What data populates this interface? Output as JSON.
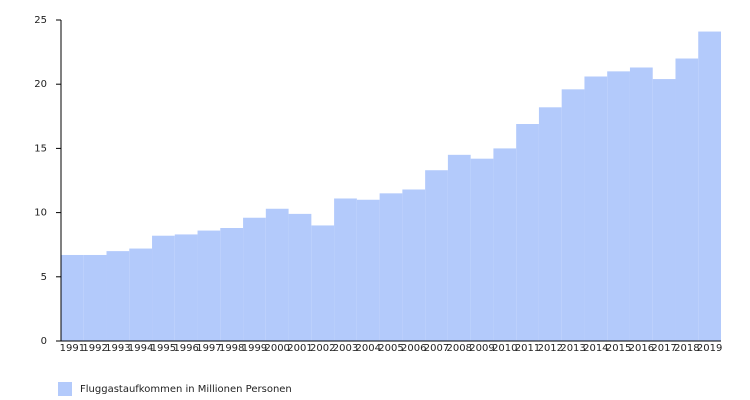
{
  "chart_data": {
    "type": "bar",
    "categories": [
      "1991",
      "1992",
      "1993",
      "1994",
      "1995",
      "1996",
      "1997",
      "1998",
      "1999",
      "2000",
      "2001",
      "2002",
      "2003",
      "2004",
      "2005",
      "2006",
      "2007",
      "2008",
      "2009",
      "2010",
      "2011",
      "2012",
      "2013",
      "2014",
      "2015",
      "2016",
      "2017",
      "2018",
      "2019"
    ],
    "series": [
      {
        "name": "Fluggastaufkommen in Millionen Personen",
        "color": "#b3cafb",
        "values": [
          6.7,
          6.7,
          7.0,
          7.2,
          8.2,
          8.3,
          8.6,
          8.8,
          9.6,
          10.3,
          9.9,
          9.0,
          11.1,
          11.0,
          11.5,
          11.8,
          13.3,
          14.5,
          14.2,
          15.0,
          16.9,
          18.2,
          19.6,
          20.6,
          21.0,
          21.3,
          20.4,
          22.0,
          24.1
        ]
      }
    ],
    "ylim": [
      0,
      25
    ],
    "yticks": [
      0,
      5,
      10,
      15,
      20,
      25
    ],
    "legend": "bottom-left"
  }
}
